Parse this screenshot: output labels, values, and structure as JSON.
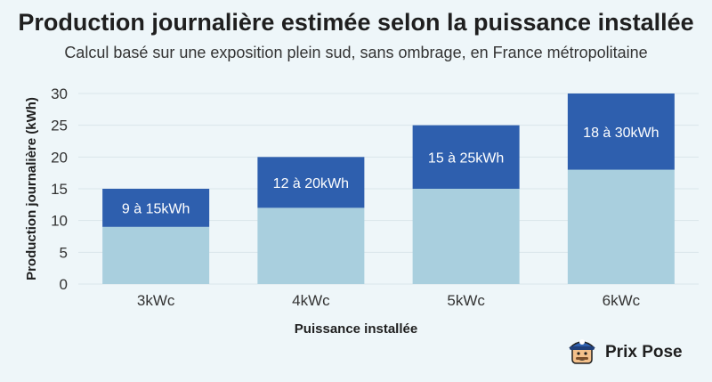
{
  "title": "Production journalière estimée selon la puissance installée",
  "subtitle": "Calcul basé sur une exposition plein sud, sans ombrage, en France métropolitaine",
  "brand": {
    "name": "Prix Pose",
    "icon": "mascot-logo-icon"
  },
  "colors": {
    "base": "#a9cfde",
    "top": "#2e5fae",
    "grid": "#d9e5ea",
    "background": "#eef6f9"
  },
  "chart_data": {
    "type": "bar",
    "stacked": true,
    "categories": [
      "3kWc",
      "4kWc",
      "5kWc",
      "6kWc"
    ],
    "series": [
      {
        "values": [
          9,
          12,
          15,
          18
        ]
      },
      {
        "values": [
          6,
          8,
          10,
          12
        ]
      }
    ],
    "data_labels": [
      "9 à 15kWh",
      "12 à 20kWh",
      "15 à 25kWh",
      "18 à 30kWh"
    ],
    "xlabel": "Puissance installée",
    "ylabel": "Production journalière (kWh)",
    "ylim": [
      0,
      30
    ],
    "yticks": [
      0,
      5,
      10,
      15,
      20,
      25,
      30
    ],
    "grid": true,
    "legend": "none"
  }
}
